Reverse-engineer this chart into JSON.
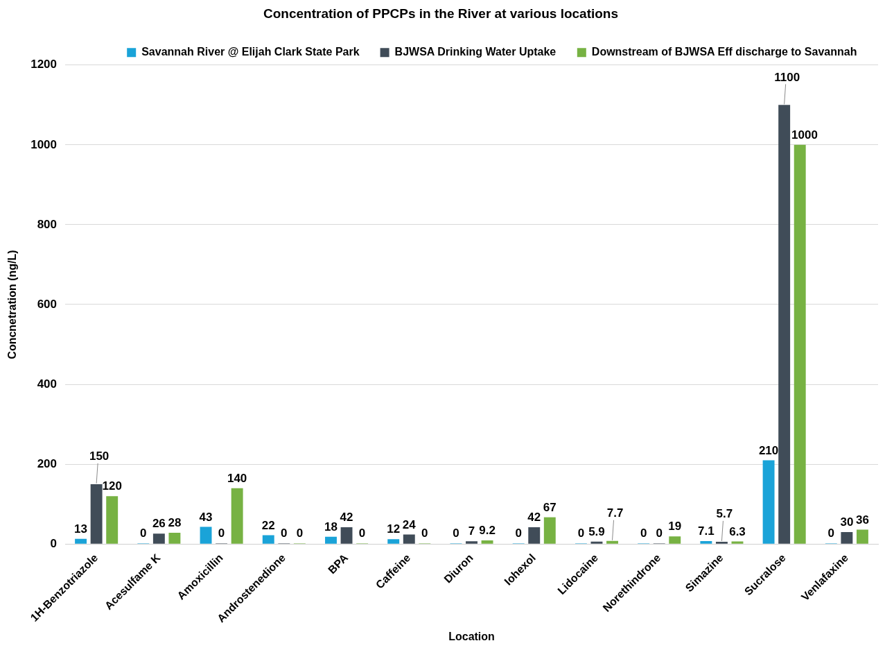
{
  "chart_data": {
    "type": "bar",
    "title": "Concentration of PPCPs in the River at various locations",
    "xlabel": "Location",
    "ylabel": "Concnetration (ng/L)",
    "categories": [
      "1H-Benzotriazole",
      "Acesulfame K",
      "Amoxicillin",
      "Androstenedione",
      "BPA",
      "Caffeine",
      "Diuron",
      "Iohexol",
      "Lidocaine",
      "Norethindrone",
      "Simazine",
      "Sucralose",
      "Venlafaxine"
    ],
    "series": [
      {
        "name": "Savannah River @ Elijah Clark State Park",
        "color": "#1aa3d8",
        "values": [
          13,
          0,
          43,
          22,
          18,
          12,
          0,
          0,
          0,
          0,
          7.1,
          210,
          0
        ]
      },
      {
        "name": "BJWSA Drinking Water Uptake",
        "color": "#404c58",
        "values": [
          150,
          26,
          0,
          0,
          42,
          24,
          7,
          42,
          5.9,
          0,
          5.7,
          1100,
          30
        ]
      },
      {
        "name": "Downstream of BJWSA Eff discharge to Savannah",
        "color": "#77b243",
        "values": [
          120,
          28,
          140,
          0,
          0,
          0,
          9.2,
          67,
          7.7,
          19,
          6.3,
          1000,
          36
        ]
      }
    ],
    "ylim": [
      0,
      1200
    ],
    "yticks": [
      0,
      200,
      400,
      600,
      800,
      1000,
      1200
    ],
    "grid": "y",
    "legend": "top",
    "data_labels": true
  }
}
